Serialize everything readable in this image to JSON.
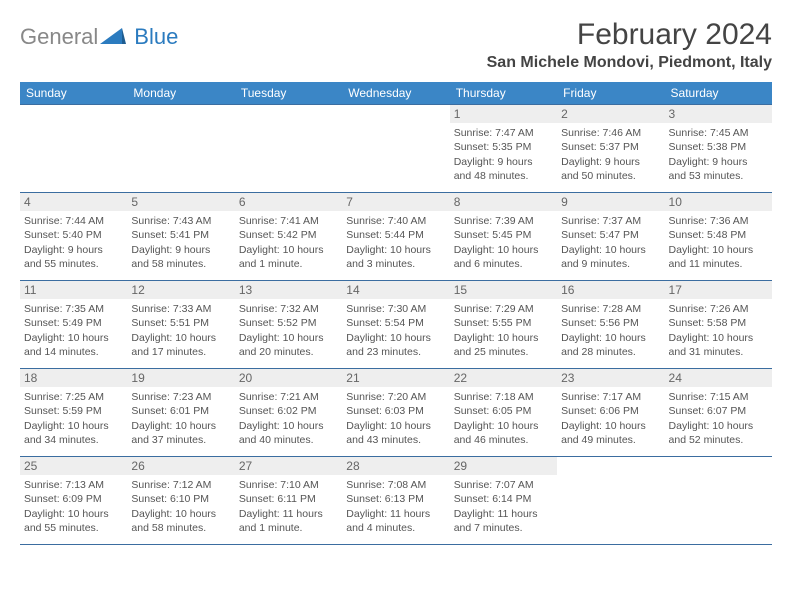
{
  "branding": {
    "word1": "General",
    "word2": "Blue",
    "logo_fill": "#2b7bbf",
    "word1_color": "#888888",
    "word2_color": "#2b7bbf"
  },
  "title": "February 2024",
  "location": "San Michele Mondovi, Piedmont, Italy",
  "colors": {
    "header_bg": "#3b86c6",
    "header_text": "#ffffff",
    "cell_border": "#3b6da0",
    "daynum_bg": "#eeeeee",
    "body_text": "#555555"
  },
  "weekdays": [
    "Sunday",
    "Monday",
    "Tuesday",
    "Wednesday",
    "Thursday",
    "Friday",
    "Saturday"
  ],
  "weeks": [
    [
      null,
      null,
      null,
      null,
      {
        "n": "1",
        "sunrise": "7:47 AM",
        "sunset": "5:35 PM",
        "day1": "Daylight: 9 hours",
        "day2": "and 48 minutes."
      },
      {
        "n": "2",
        "sunrise": "7:46 AM",
        "sunset": "5:37 PM",
        "day1": "Daylight: 9 hours",
        "day2": "and 50 minutes."
      },
      {
        "n": "3",
        "sunrise": "7:45 AM",
        "sunset": "5:38 PM",
        "day1": "Daylight: 9 hours",
        "day2": "and 53 minutes."
      }
    ],
    [
      {
        "n": "4",
        "sunrise": "7:44 AM",
        "sunset": "5:40 PM",
        "day1": "Daylight: 9 hours",
        "day2": "and 55 minutes."
      },
      {
        "n": "5",
        "sunrise": "7:43 AM",
        "sunset": "5:41 PM",
        "day1": "Daylight: 9 hours",
        "day2": "and 58 minutes."
      },
      {
        "n": "6",
        "sunrise": "7:41 AM",
        "sunset": "5:42 PM",
        "day1": "Daylight: 10 hours",
        "day2": "and 1 minute."
      },
      {
        "n": "7",
        "sunrise": "7:40 AM",
        "sunset": "5:44 PM",
        "day1": "Daylight: 10 hours",
        "day2": "and 3 minutes."
      },
      {
        "n": "8",
        "sunrise": "7:39 AM",
        "sunset": "5:45 PM",
        "day1": "Daylight: 10 hours",
        "day2": "and 6 minutes."
      },
      {
        "n": "9",
        "sunrise": "7:37 AM",
        "sunset": "5:47 PM",
        "day1": "Daylight: 10 hours",
        "day2": "and 9 minutes."
      },
      {
        "n": "10",
        "sunrise": "7:36 AM",
        "sunset": "5:48 PM",
        "day1": "Daylight: 10 hours",
        "day2": "and 11 minutes."
      }
    ],
    [
      {
        "n": "11",
        "sunrise": "7:35 AM",
        "sunset": "5:49 PM",
        "day1": "Daylight: 10 hours",
        "day2": "and 14 minutes."
      },
      {
        "n": "12",
        "sunrise": "7:33 AM",
        "sunset": "5:51 PM",
        "day1": "Daylight: 10 hours",
        "day2": "and 17 minutes."
      },
      {
        "n": "13",
        "sunrise": "7:32 AM",
        "sunset": "5:52 PM",
        "day1": "Daylight: 10 hours",
        "day2": "and 20 minutes."
      },
      {
        "n": "14",
        "sunrise": "7:30 AM",
        "sunset": "5:54 PM",
        "day1": "Daylight: 10 hours",
        "day2": "and 23 minutes."
      },
      {
        "n": "15",
        "sunrise": "7:29 AM",
        "sunset": "5:55 PM",
        "day1": "Daylight: 10 hours",
        "day2": "and 25 minutes."
      },
      {
        "n": "16",
        "sunrise": "7:28 AM",
        "sunset": "5:56 PM",
        "day1": "Daylight: 10 hours",
        "day2": "and 28 minutes."
      },
      {
        "n": "17",
        "sunrise": "7:26 AM",
        "sunset": "5:58 PM",
        "day1": "Daylight: 10 hours",
        "day2": "and 31 minutes."
      }
    ],
    [
      {
        "n": "18",
        "sunrise": "7:25 AM",
        "sunset": "5:59 PM",
        "day1": "Daylight: 10 hours",
        "day2": "and 34 minutes."
      },
      {
        "n": "19",
        "sunrise": "7:23 AM",
        "sunset": "6:01 PM",
        "day1": "Daylight: 10 hours",
        "day2": "and 37 minutes."
      },
      {
        "n": "20",
        "sunrise": "7:21 AM",
        "sunset": "6:02 PM",
        "day1": "Daylight: 10 hours",
        "day2": "and 40 minutes."
      },
      {
        "n": "21",
        "sunrise": "7:20 AM",
        "sunset": "6:03 PM",
        "day1": "Daylight: 10 hours",
        "day2": "and 43 minutes."
      },
      {
        "n": "22",
        "sunrise": "7:18 AM",
        "sunset": "6:05 PM",
        "day1": "Daylight: 10 hours",
        "day2": "and 46 minutes."
      },
      {
        "n": "23",
        "sunrise": "7:17 AM",
        "sunset": "6:06 PM",
        "day1": "Daylight: 10 hours",
        "day2": "and 49 minutes."
      },
      {
        "n": "24",
        "sunrise": "7:15 AM",
        "sunset": "6:07 PM",
        "day1": "Daylight: 10 hours",
        "day2": "and 52 minutes."
      }
    ],
    [
      {
        "n": "25",
        "sunrise": "7:13 AM",
        "sunset": "6:09 PM",
        "day1": "Daylight: 10 hours",
        "day2": "and 55 minutes."
      },
      {
        "n": "26",
        "sunrise": "7:12 AM",
        "sunset": "6:10 PM",
        "day1": "Daylight: 10 hours",
        "day2": "and 58 minutes."
      },
      {
        "n": "27",
        "sunrise": "7:10 AM",
        "sunset": "6:11 PM",
        "day1": "Daylight: 11 hours",
        "day2": "and 1 minute."
      },
      {
        "n": "28",
        "sunrise": "7:08 AM",
        "sunset": "6:13 PM",
        "day1": "Daylight: 11 hours",
        "day2": "and 4 minutes."
      },
      {
        "n": "29",
        "sunrise": "7:07 AM",
        "sunset": "6:14 PM",
        "day1": "Daylight: 11 hours",
        "day2": "and 7 minutes."
      },
      null,
      null
    ]
  ],
  "labels": {
    "sunrise_prefix": "Sunrise: ",
    "sunset_prefix": "Sunset: "
  }
}
